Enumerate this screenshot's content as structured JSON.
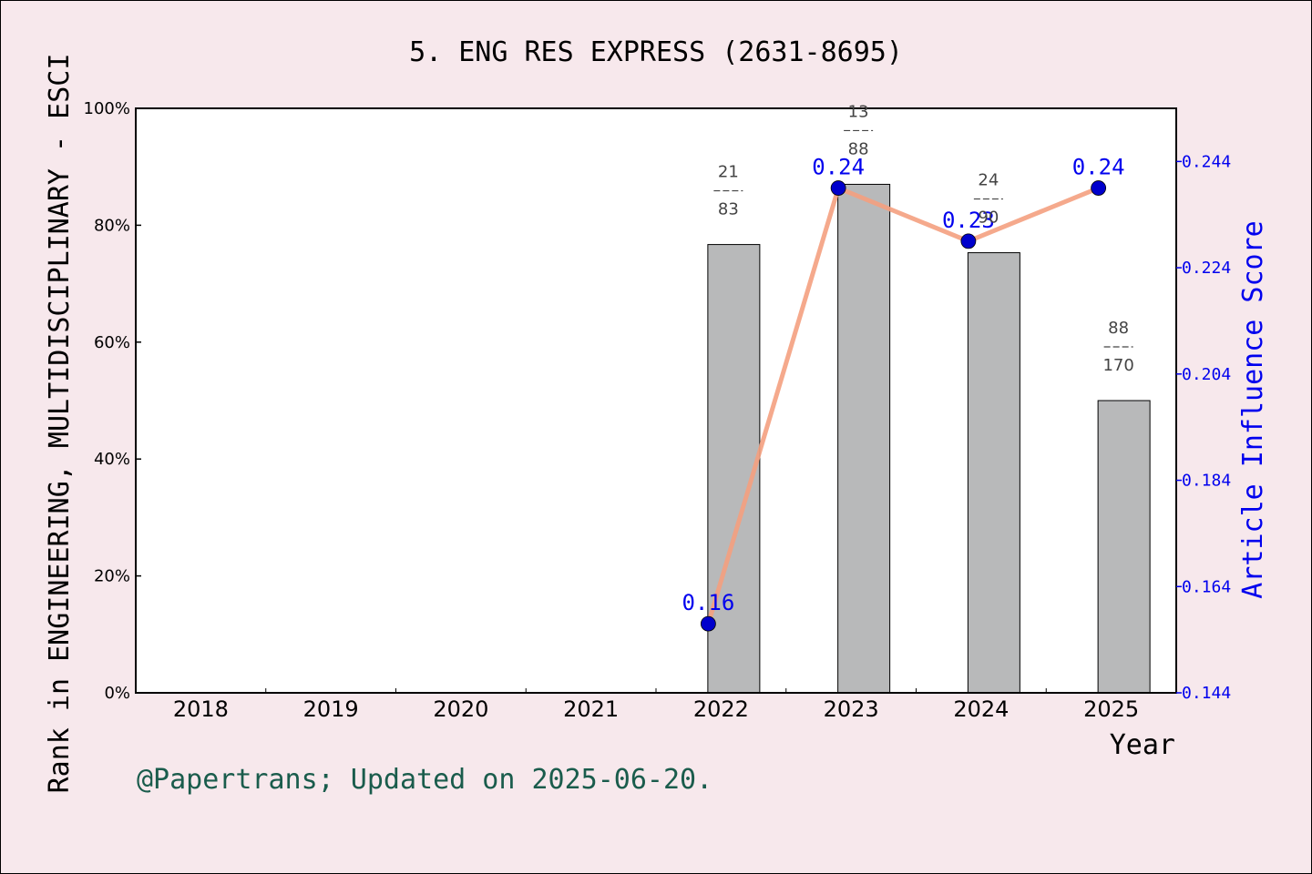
{
  "chart_data": {
    "type": "bar",
    "title": "5. ENG RES EXPRESS (2631-8695)",
    "xlabel": "Year",
    "ylabel": "Rank in ENGINEERING, MULTIDISCIPLINARY - ESCI",
    "y2label": "Article Influence Score",
    "credit": "@Papertrans; Updated on 2025-06-20.",
    "categories": [
      "2018",
      "2019",
      "2020",
      "2021",
      "2022",
      "2023",
      "2024",
      "2025"
    ],
    "ylim": [
      0,
      100
    ],
    "yticks": [
      "0%",
      "20%",
      "40%",
      "60%",
      "80%",
      "100%"
    ],
    "y2lim": [
      0.144,
      0.254
    ],
    "y2ticks": [
      "0.144",
      "0.164",
      "0.184",
      "0.204",
      "0.224",
      "0.244"
    ],
    "bars": [
      {
        "year": "2022",
        "value": 76.7,
        "rank": "21",
        "total": "83"
      },
      {
        "year": "2023",
        "value": 87.0,
        "rank": "13",
        "total": "88"
      },
      {
        "year": "2024",
        "value": 75.3,
        "rank": "24",
        "total": "90"
      },
      {
        "year": "2025",
        "value": 50.0,
        "rank": "88",
        "total": "170"
      }
    ],
    "line": {
      "name": "Article Influence Score",
      "points": [
        {
          "year": "2022",
          "value": 0.157,
          "label": "0.16"
        },
        {
          "year": "2023",
          "value": 0.239,
          "label": "0.24"
        },
        {
          "year": "2024",
          "value": 0.229,
          "label": "0.23"
        },
        {
          "year": "2025",
          "value": 0.239,
          "label": "0.24"
        }
      ]
    },
    "colors": {
      "background": "#f7e8ec",
      "plot": "#ffffff",
      "bar": "#b8b9ba",
      "line": "#f4a080",
      "marker": "#0000cc",
      "right_axis": "#0000ee",
      "credit": "#1a5c4c"
    },
    "grid": false
  }
}
